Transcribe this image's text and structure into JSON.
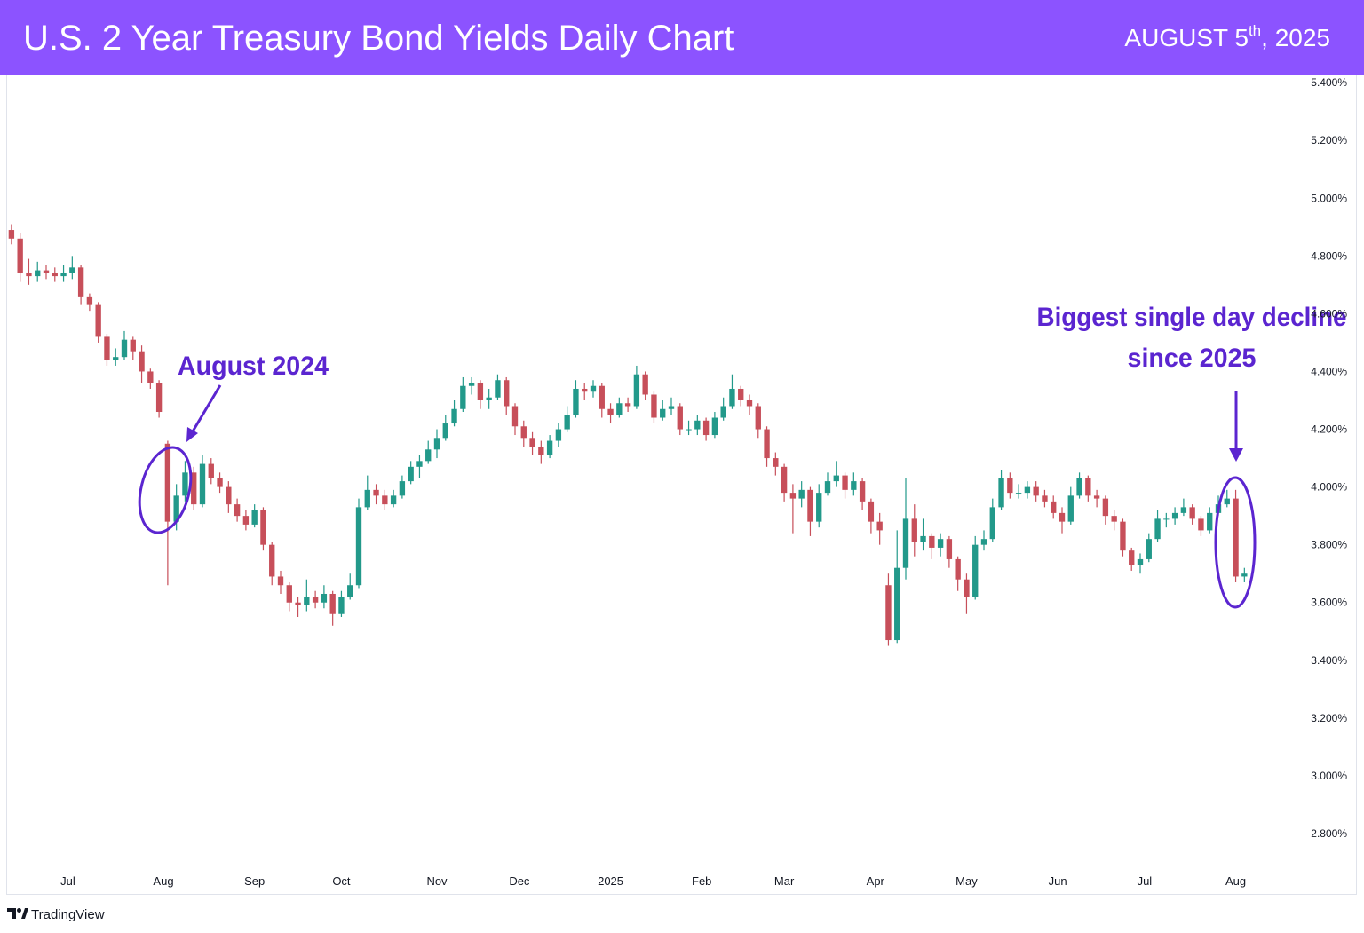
{
  "header": {
    "title": "U.S. 2 Year Treasury Bond Yields Daily Chart",
    "date_main": "AUGUST 5",
    "date_sup": "th",
    "date_year": ", 2025"
  },
  "footer": {
    "brand": "TradingView"
  },
  "chart_data": {
    "type": "candlestick",
    "up_color": "#22998a",
    "down_color": "#c74f5a",
    "grid": false,
    "annotations": {
      "left": "August 2024",
      "right": [
        "Biggest single day decline",
        "since 2025"
      ]
    },
    "xlim": [
      -1,
      296
    ],
    "xticks": [
      {
        "value": 13,
        "label": "Jul"
      },
      {
        "value": 35,
        "label": "Aug"
      },
      {
        "value": 56,
        "label": "Sep"
      },
      {
        "value": 76,
        "label": "Oct"
      },
      {
        "value": 98,
        "label": "Nov"
      },
      {
        "value": 117,
        "label": "Dec"
      },
      {
        "value": 138,
        "label": "2025"
      },
      {
        "value": 159,
        "label": "Feb"
      },
      {
        "value": 178,
        "label": "Mar"
      },
      {
        "value": 199,
        "label": "Apr"
      },
      {
        "value": 220,
        "label": "May"
      },
      {
        "value": 241,
        "label": "Jun"
      },
      {
        "value": 261,
        "label": "Jul"
      },
      {
        "value": 282,
        "label": "Aug"
      }
    ],
    "ylim": [
      2.588,
      5.428
    ],
    "yticks": [
      {
        "value": 5.4,
        "label": "5.400%"
      },
      {
        "value": 5.2,
        "label": "5.200%"
      },
      {
        "value": 5.0,
        "label": "5.000%"
      },
      {
        "value": 4.8,
        "label": "4.800%"
      },
      {
        "value": 4.6,
        "label": "4.600%"
      },
      {
        "value": 4.4,
        "label": "4.400%"
      },
      {
        "value": 4.2,
        "label": "4.200%"
      },
      {
        "value": 4.0,
        "label": "4.000%"
      },
      {
        "value": 3.8,
        "label": "3.800%"
      },
      {
        "value": 3.6,
        "label": "3.600%"
      },
      {
        "value": 3.4,
        "label": "3.400%"
      },
      {
        "value": 3.2,
        "label": "3.200%"
      },
      {
        "value": 3.0,
        "label": "3.000%"
      },
      {
        "value": 2.8,
        "label": "2.800%"
      }
    ],
    "x": [
      0,
      2,
      4,
      6,
      8,
      10,
      12,
      14,
      16,
      18,
      20,
      22,
      24,
      26,
      28,
      30,
      32,
      34,
      36,
      38,
      40,
      42,
      44,
      46,
      48,
      50,
      52,
      54,
      56,
      58,
      60,
      62,
      64,
      66,
      68,
      70,
      72,
      74,
      76,
      78,
      80,
      82,
      84,
      86,
      88,
      90,
      92,
      94,
      96,
      98,
      100,
      102,
      104,
      106,
      108,
      110,
      112,
      114,
      116,
      118,
      120,
      122,
      124,
      126,
      128,
      130,
      132,
      134,
      136,
      138,
      140,
      142,
      144,
      146,
      148,
      150,
      152,
      154,
      156,
      158,
      160,
      162,
      164,
      166,
      168,
      170,
      172,
      174,
      176,
      178,
      180,
      182,
      184,
      186,
      188,
      190,
      192,
      194,
      196,
      198,
      200,
      202,
      204,
      206,
      208,
      210,
      212,
      214,
      216,
      218,
      220,
      222,
      224,
      226,
      228,
      230,
      232,
      234,
      236,
      238,
      240,
      242,
      244,
      246,
      248,
      250,
      252,
      254,
      256,
      258,
      260,
      262,
      264,
      266,
      268,
      270,
      272,
      274,
      276,
      278,
      280,
      282,
      284
    ],
    "open": [
      4.89,
      4.86,
      4.74,
      4.73,
      4.75,
      4.74,
      4.73,
      4.74,
      4.76,
      4.66,
      4.63,
      4.52,
      4.44,
      4.45,
      4.51,
      4.47,
      4.4,
      4.36,
      4.15,
      3.88,
      3.97,
      4.05,
      3.94,
      4.08,
      4.03,
      4.0,
      3.94,
      3.9,
      3.87,
      3.92,
      3.8,
      3.69,
      3.66,
      3.6,
      3.59,
      3.62,
      3.6,
      3.63,
      3.56,
      3.62,
      3.66,
      3.93,
      3.99,
      3.97,
      3.94,
      3.97,
      4.02,
      4.07,
      4.09,
      4.13,
      4.17,
      4.22,
      4.27,
      4.35,
      4.36,
      4.3,
      4.31,
      4.37,
      4.28,
      4.21,
      4.17,
      4.14,
      4.11,
      4.16,
      4.2,
      4.25,
      4.34,
      4.33,
      4.35,
      4.27,
      4.25,
      4.29,
      4.28,
      4.39,
      4.32,
      4.24,
      4.27,
      4.28,
      4.2,
      4.2,
      4.23,
      4.18,
      4.24,
      4.28,
      4.34,
      4.3,
      4.28,
      4.2,
      4.1,
      4.07,
      3.98,
      3.96,
      3.99,
      3.88,
      3.98,
      4.02,
      4.04,
      3.99,
      4.02,
      3.95,
      3.88,
      3.66,
      3.47,
      3.72,
      3.89,
      3.81,
      3.83,
      3.79,
      3.82,
      3.75,
      3.68,
      3.62,
      3.8,
      3.82,
      3.93,
      4.03,
      3.98,
      3.98,
      4.0,
      3.97,
      3.95,
      3.91,
      3.88,
      3.97,
      4.03,
      3.97,
      3.96,
      3.9,
      3.88,
      3.78,
      3.73,
      3.75,
      3.82,
      3.89,
      3.89,
      3.91,
      3.93,
      3.89,
      3.85,
      3.91,
      3.94,
      3.96,
      3.69
    ],
    "high": [
      4.91,
      4.88,
      4.79,
      4.78,
      4.77,
      4.76,
      4.77,
      4.8,
      4.77,
      4.67,
      4.64,
      4.53,
      4.48,
      4.54,
      4.52,
      4.49,
      4.41,
      4.37,
      4.16,
      4.01,
      4.09,
      4.07,
      4.11,
      4.1,
      4.05,
      4.02,
      3.96,
      3.92,
      3.94,
      3.93,
      3.81,
      3.71,
      3.67,
      3.62,
      3.68,
      3.64,
      3.66,
      3.64,
      3.64,
      3.7,
      3.96,
      4.04,
      4.01,
      3.99,
      3.99,
      4.04,
      4.09,
      4.11,
      4.16,
      4.2,
      4.25,
      4.3,
      4.38,
      4.38,
      4.37,
      4.34,
      4.39,
      4.38,
      4.29,
      4.23,
      4.19,
      4.16,
      4.18,
      4.22,
      4.28,
      4.37,
      4.36,
      4.37,
      4.36,
      4.29,
      4.31,
      4.31,
      4.42,
      4.4,
      4.33,
      4.3,
      4.31,
      4.29,
      4.23,
      4.25,
      4.24,
      4.26,
      4.31,
      4.39,
      4.35,
      4.32,
      4.29,
      4.21,
      4.12,
      4.08,
      4.01,
      4.02,
      4.0,
      4.01,
      4.05,
      4.09,
      4.05,
      4.05,
      4.03,
      3.96,
      3.91,
      3.7,
      3.85,
      4.03,
      3.94,
      3.89,
      3.84,
      3.84,
      3.83,
      3.76,
      3.7,
      3.83,
      3.85,
      3.96,
      4.06,
      4.05,
      4.01,
      4.02,
      4.02,
      3.99,
      3.97,
      3.93,
      4.0,
      4.05,
      4.04,
      3.99,
      3.97,
      3.92,
      3.89,
      3.79,
      3.77,
      3.84,
      3.92,
      3.91,
      3.93,
      3.96,
      3.94,
      3.9,
      3.93,
      3.97,
      3.99,
      3.99,
      3.72
    ],
    "low": [
      4.84,
      4.71,
      4.7,
      4.71,
      4.72,
      4.71,
      4.71,
      4.72,
      4.63,
      4.61,
      4.5,
      4.42,
      4.42,
      4.44,
      4.44,
      4.36,
      4.34,
      4.24,
      3.66,
      3.85,
      3.95,
      3.92,
      3.93,
      4.01,
      3.98,
      3.91,
      3.88,
      3.85,
      3.86,
      3.78,
      3.66,
      3.63,
      3.57,
      3.55,
      3.57,
      3.58,
      3.58,
      3.52,
      3.55,
      3.61,
      3.65,
      3.92,
      3.94,
      3.92,
      3.93,
      3.96,
      4.01,
      4.03,
      4.08,
      4.1,
      4.16,
      4.21,
      4.26,
      4.32,
      4.27,
      4.27,
      4.3,
      4.25,
      4.18,
      4.14,
      4.11,
      4.08,
      4.1,
      4.14,
      4.19,
      4.24,
      4.3,
      4.31,
      4.24,
      4.22,
      4.24,
      4.26,
      4.27,
      4.3,
      4.22,
      4.23,
      4.25,
      4.18,
      4.18,
      4.18,
      4.16,
      4.17,
      4.23,
      4.27,
      4.28,
      4.25,
      4.17,
      4.07,
      4.04,
      3.95,
      3.84,
      3.93,
      3.83,
      3.86,
      3.97,
      4.0,
      3.96,
      3.97,
      3.92,
      3.84,
      3.8,
      3.45,
      3.46,
      3.68,
      3.76,
      3.78,
      3.75,
      3.76,
      3.72,
      3.64,
      3.56,
      3.61,
      3.78,
      3.81,
      3.92,
      3.96,
      3.96,
      3.96,
      3.95,
      3.93,
      3.89,
      3.84,
      3.87,
      3.96,
      3.95,
      3.93,
      3.87,
      3.85,
      3.76,
      3.71,
      3.7,
      3.74,
      3.81,
      3.86,
      3.87,
      3.9,
      3.87,
      3.83,
      3.84,
      3.9,
      3.93,
      3.67,
      3.67
    ],
    "close": [
      4.86,
      4.74,
      4.73,
      4.75,
      4.74,
      4.73,
      4.74,
      4.76,
      4.66,
      4.63,
      4.52,
      4.44,
      4.45,
      4.51,
      4.47,
      4.4,
      4.36,
      4.26,
      3.88,
      3.97,
      4.05,
      3.94,
      4.08,
      4.03,
      4.0,
      3.94,
      3.9,
      3.87,
      3.92,
      3.8,
      3.69,
      3.66,
      3.6,
      3.59,
      3.62,
      3.6,
      3.63,
      3.56,
      3.62,
      3.66,
      3.93,
      3.99,
      3.97,
      3.94,
      3.97,
      4.02,
      4.07,
      4.09,
      4.13,
      4.17,
      4.22,
      4.27,
      4.35,
      4.36,
      4.3,
      4.31,
      4.37,
      4.28,
      4.21,
      4.17,
      4.14,
      4.11,
      4.16,
      4.2,
      4.25,
      4.34,
      4.33,
      4.35,
      4.27,
      4.25,
      4.29,
      4.28,
      4.39,
      4.32,
      4.24,
      4.27,
      4.28,
      4.2,
      4.2,
      4.23,
      4.18,
      4.24,
      4.28,
      4.34,
      4.3,
      4.28,
      4.2,
      4.1,
      4.07,
      3.98,
      3.96,
      3.99,
      3.88,
      3.98,
      4.02,
      4.04,
      3.99,
      4.02,
      3.95,
      3.88,
      3.85,
      3.47,
      3.72,
      3.89,
      3.81,
      3.83,
      3.79,
      3.82,
      3.75,
      3.68,
      3.62,
      3.8,
      3.82,
      3.93,
      4.03,
      3.98,
      3.98,
      4.0,
      3.97,
      3.95,
      3.91,
      3.88,
      3.97,
      4.03,
      3.97,
      3.96,
      3.9,
      3.88,
      3.78,
      3.73,
      3.75,
      3.82,
      3.89,
      3.89,
      3.91,
      3.93,
      3.89,
      3.85,
      3.91,
      3.94,
      3.96,
      3.69,
      3.7
    ]
  }
}
